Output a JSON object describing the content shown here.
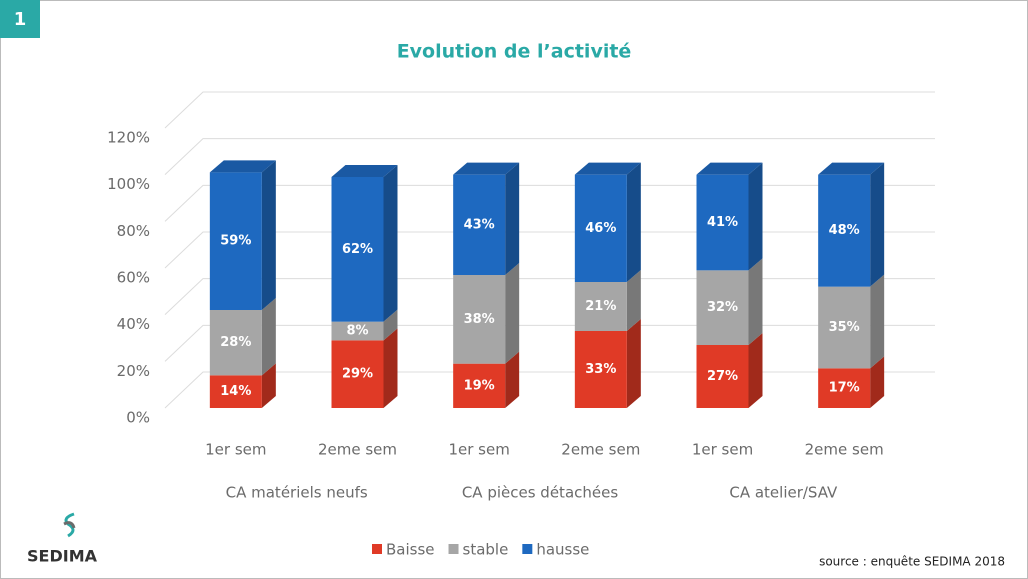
{
  "badge": "1",
  "logo": "SEDIMA",
  "source": "source :  enquête SEDIMA 2018",
  "chart_data": {
    "type": "bar",
    "stacked": true,
    "title": "Evolution de l’activité",
    "categories": [
      "1er sem",
      "2eme sem",
      "1er sem",
      "2eme sem",
      "1er sem",
      "2eme sem"
    ],
    "groups": [
      "CA matériels neufs",
      "CA pièces détachées",
      "CA atelier/SAV"
    ],
    "series": [
      {
        "name": "Baisse",
        "color": "#e03a26",
        "values": [
          14,
          29,
          19,
          33,
          27,
          17
        ],
        "value_labels": [
          "14%",
          "29%",
          "19%",
          "33%",
          "27%",
          "17%"
        ]
      },
      {
        "name": "stable",
        "color": "#a6a6a6",
        "values": [
          28,
          8,
          38,
          21,
          32,
          35
        ],
        "value_labels": [
          "28%",
          "8%",
          "38%",
          "21%",
          "32%",
          "35%"
        ]
      },
      {
        "name": "hausse",
        "color": "#1e69c0",
        "values": [
          59,
          62,
          43,
          46,
          41,
          48
        ],
        "value_labels": [
          "59%",
          "62%",
          "43%",
          "46%",
          "41%",
          "48%"
        ]
      }
    ],
    "ylim": [
      0,
      120
    ],
    "yticks": [
      {
        "value": 0,
        "label": "0%"
      },
      {
        "value": 20,
        "label": "20%"
      },
      {
        "value": 40,
        "label": "40%"
      },
      {
        "value": 60,
        "label": "60%"
      },
      {
        "value": 80,
        "label": "80%"
      },
      {
        "value": 100,
        "label": "100%"
      },
      {
        "value": 120,
        "label": "120%"
      }
    ],
    "grid": true,
    "legend": "bottom"
  }
}
